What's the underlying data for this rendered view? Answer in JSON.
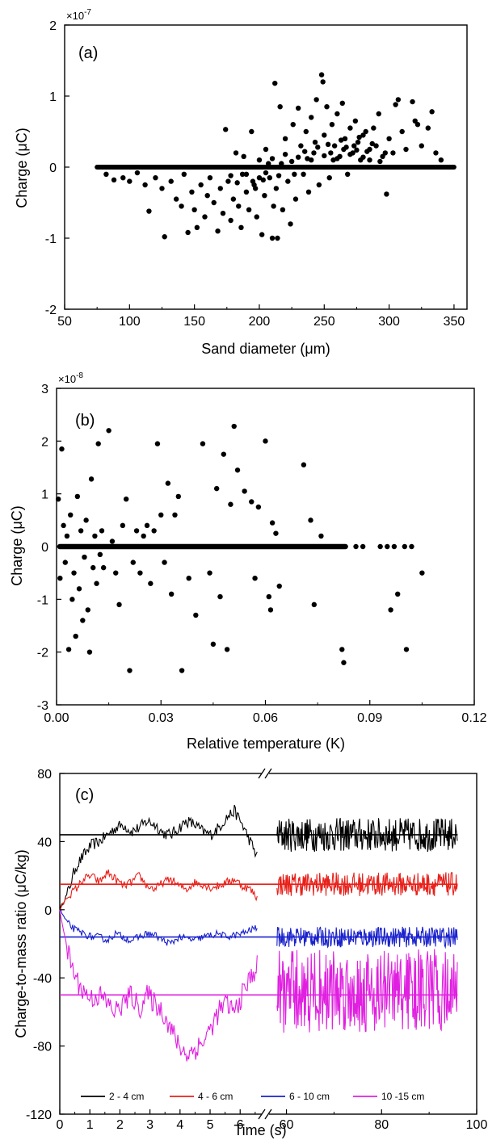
{
  "chart_data": [
    {
      "type": "scatter",
      "panel_label": "(a)",
      "xlabel": "Sand diameter (μm)",
      "ylabel": "Charge (μC)",
      "y_multiplier": "×10-7",
      "xlim": [
        50,
        360
      ],
      "ylim": [
        -2,
        2
      ],
      "xticks": [
        "50",
        "100",
        "150",
        "200",
        "250",
        "300",
        "350"
      ],
      "yticks": [
        "-2",
        "-1",
        "0",
        "1",
        "2"
      ],
      "zero_band": [
        75,
        350
      ],
      "points": [
        [
          82,
          -0.1
        ],
        [
          88,
          -0.18
        ],
        [
          95,
          -0.15
        ],
        [
          100,
          -0.2
        ],
        [
          106,
          -0.08
        ],
        [
          112,
          -0.25
        ],
        [
          115,
          -0.62
        ],
        [
          120,
          -0.15
        ],
        [
          125,
          -0.3
        ],
        [
          127,
          -0.98
        ],
        [
          132,
          -0.2
        ],
        [
          136,
          -0.45
        ],
        [
          140,
          -0.55
        ],
        [
          142,
          -0.1
        ],
        [
          145,
          -0.92
        ],
        [
          148,
          -0.35
        ],
        [
          150,
          -0.6
        ],
        [
          152,
          -0.85
        ],
        [
          155,
          -0.25
        ],
        [
          158,
          -0.7
        ],
        [
          160,
          -0.4
        ],
        [
          162,
          -0.15
        ],
        [
          165,
          -0.5
        ],
        [
          168,
          -0.9
        ],
        [
          170,
          -0.3
        ],
        [
          172,
          -0.65
        ],
        [
          174,
          0.53
        ],
        [
          176,
          -0.2
        ],
        [
          178,
          -0.75
        ],
        [
          180,
          -0.45
        ],
        [
          182,
          0.2
        ],
        [
          184,
          -0.55
        ],
        [
          186,
          -0.85
        ],
        [
          188,
          0.15
        ],
        [
          190,
          -0.35
        ],
        [
          192,
          -0.6
        ],
        [
          194,
          0.5
        ],
        [
          196,
          -0.25
        ],
        [
          198,
          -0.7
        ],
        [
          200,
          0.1
        ],
        [
          202,
          -0.95
        ],
        [
          204,
          -0.4
        ],
        [
          205,
          0.25
        ],
        [
          208,
          -0.15
        ],
        [
          210,
          -1.0
        ],
        [
          211,
          -0.55
        ],
        [
          212,
          1.18
        ],
        [
          213,
          -0.3
        ],
        [
          214,
          -1.0
        ],
        [
          216,
          0.85
        ],
        [
          218,
          -0.6
        ],
        [
          220,
          0.4
        ],
        [
          222,
          -0.2
        ],
        [
          224,
          -0.8
        ],
        [
          226,
          0.6
        ],
        [
          228,
          -0.45
        ],
        [
          230,
          0.83
        ],
        [
          232,
          0.3
        ],
        [
          234,
          -0.1
        ],
        [
          236,
          0.5
        ],
        [
          238,
          -0.35
        ],
        [
          240,
          0.7
        ],
        [
          242,
          0.2
        ],
        [
          244,
          0.95
        ],
        [
          246,
          -0.25
        ],
        [
          248,
          1.3
        ],
        [
          249,
          1.2
        ],
        [
          250,
          0.45
        ],
        [
          252,
          0.85
        ],
        [
          254,
          -0.15
        ],
        [
          256,
          0.6
        ],
        [
          258,
          0.3
        ],
        [
          260,
          0.75
        ],
        [
          262,
          0.15
        ],
        [
          264,
          0.9
        ],
        [
          266,
          0.4
        ],
        [
          268,
          -0.1
        ],
        [
          270,
          0.55
        ],
        [
          272,
          0.2
        ],
        [
          274,
          0.65
        ],
        [
          276,
          0.35
        ],
        [
          278,
          0.1
        ],
        [
          280,
          0.45
        ],
        [
          282,
          0.5
        ],
        [
          285,
          0.25
        ],
        [
          288,
          0.55
        ],
        [
          290,
          0.3
        ],
        [
          292,
          0.75
        ],
        [
          295,
          0.15
        ],
        [
          298,
          -0.38
        ],
        [
          300,
          0.4
        ],
        [
          303,
          0.2
        ],
        [
          305,
          0.88
        ],
        [
          307,
          0.95
        ],
        [
          310,
          0.5
        ],
        [
          313,
          0.25
        ],
        [
          318,
          0.92
        ],
        [
          320,
          0.65
        ],
        [
          322,
          0.6
        ],
        [
          325,
          0.3
        ],
        [
          330,
          0.55
        ],
        [
          333,
          0.78
        ],
        [
          336,
          0.2
        ],
        [
          340,
          0.1
        ],
        [
          190,
          -0.1
        ],
        [
          195,
          -0.2
        ],
        [
          200,
          -0.15
        ],
        [
          205,
          -0.08
        ],
        [
          210,
          0.12
        ],
        [
          215,
          -0.12
        ],
        [
          220,
          0.18
        ],
        [
          225,
          0.08
        ],
        [
          230,
          0.14
        ],
        [
          235,
          0.22
        ],
        [
          240,
          0.1
        ],
        [
          245,
          0.28
        ],
        [
          250,
          0.16
        ],
        [
          255,
          0.2
        ],
        [
          260,
          0.12
        ],
        [
          265,
          0.25
        ],
        [
          270,
          0.18
        ],
        [
          275,
          0.24
        ],
        [
          280,
          0.14
        ],
        [
          285,
          0.1
        ],
        [
          178,
          -0.12
        ],
        [
          183,
          -0.22
        ],
        [
          187,
          -0.1
        ],
        [
          197,
          -0.3
        ],
        [
          203,
          -0.18
        ],
        [
          207,
          0.05
        ],
        [
          217,
          0.05
        ],
        [
          227,
          -0.1
        ],
        [
          237,
          0.12
        ],
        [
          243,
          0.35
        ],
        [
          253,
          0.32
        ],
        [
          257,
          0.1
        ],
        [
          263,
          0.38
        ],
        [
          267,
          0.28
        ],
        [
          273,
          0.3
        ],
        [
          277,
          0.42
        ],
        [
          283,
          0.22
        ],
        [
          287,
          0.33
        ],
        [
          293,
          0.08
        ],
        [
          297,
          0.2
        ]
      ]
    },
    {
      "type": "scatter",
      "panel_label": "(b)",
      "xlabel": "Relative temperature (K)",
      "ylabel": "Charge (μC)",
      "y_multiplier": "×10-8",
      "xlim": [
        0,
        0.12
      ],
      "ylim": [
        -3,
        3
      ],
      "xticks": [
        "0.00",
        "0.03",
        "0.06",
        "0.09",
        "0.12"
      ],
      "yticks": [
        "-3",
        "-2",
        "-1",
        "0",
        "1",
        "2",
        "3"
      ],
      "zero_band": [
        0,
        0.083
      ],
      "points": [
        [
          0.0005,
          0.9
        ],
        [
          0.001,
          -0.6
        ],
        [
          0.0015,
          1.85
        ],
        [
          0.002,
          0.4
        ],
        [
          0.0025,
          -0.3
        ],
        [
          0.003,
          0.2
        ],
        [
          0.0035,
          -1.95
        ],
        [
          0.004,
          0.6
        ],
        [
          0.0045,
          -1.0
        ],
        [
          0.005,
          -0.5
        ],
        [
          0.0055,
          -1.7
        ],
        [
          0.006,
          0.95
        ],
        [
          0.0065,
          -0.8
        ],
        [
          0.007,
          0.3
        ],
        [
          0.0075,
          -1.4
        ],
        [
          0.008,
          -0.2
        ],
        [
          0.0085,
          0.5
        ],
        [
          0.009,
          -1.2
        ],
        [
          0.0095,
          -2.0
        ],
        [
          0.01,
          1.28
        ],
        [
          0.0105,
          -0.4
        ],
        [
          0.011,
          0.2
        ],
        [
          0.0115,
          -0.7
        ],
        [
          0.012,
          1.95
        ],
        [
          0.0125,
          -0.15
        ],
        [
          0.013,
          0.3
        ],
        [
          0.0135,
          -0.4
        ],
        [
          0.015,
          2.2
        ],
        [
          0.016,
          0.1
        ],
        [
          0.017,
          -0.5
        ],
        [
          0.018,
          -1.1
        ],
        [
          0.019,
          0.4
        ],
        [
          0.02,
          0.9
        ],
        [
          0.021,
          -2.35
        ],
        [
          0.022,
          -0.3
        ],
        [
          0.023,
          0.3
        ],
        [
          0.024,
          -0.5
        ],
        [
          0.025,
          0.2
        ],
        [
          0.026,
          0.4
        ],
        [
          0.027,
          -0.7
        ],
        [
          0.028,
          0.3
        ],
        [
          0.029,
          1.95
        ],
        [
          0.03,
          0.6
        ],
        [
          0.031,
          -0.3
        ],
        [
          0.032,
          1.2
        ],
        [
          0.033,
          -0.9
        ],
        [
          0.034,
          0.6
        ],
        [
          0.035,
          0.95
        ],
        [
          0.036,
          -2.35
        ],
        [
          0.038,
          -0.6
        ],
        [
          0.04,
          -1.3
        ],
        [
          0.042,
          1.95
        ],
        [
          0.044,
          -0.5
        ],
        [
          0.045,
          -1.85
        ],
        [
          0.046,
          1.1
        ],
        [
          0.047,
          -0.95
        ],
        [
          0.048,
          1.75
        ],
        [
          0.049,
          -1.95
        ],
        [
          0.05,
          0.8
        ],
        [
          0.051,
          2.28
        ],
        [
          0.052,
          1.45
        ],
        [
          0.054,
          1.05
        ],
        [
          0.056,
          0.85
        ],
        [
          0.057,
          -0.6
        ],
        [
          0.058,
          0.75
        ],
        [
          0.06,
          2.0
        ],
        [
          0.061,
          -0.95
        ],
        [
          0.0615,
          -1.2
        ],
        [
          0.062,
          0.45
        ],
        [
          0.063,
          0.25
        ],
        [
          0.064,
          -0.75
        ],
        [
          0.071,
          1.55
        ],
        [
          0.073,
          0.5
        ],
        [
          0.074,
          -1.1
        ],
        [
          0.076,
          0.2
        ],
        [
          0.082,
          -1.95
        ],
        [
          0.0825,
          -2.2
        ],
        [
          0.096,
          -1.2
        ],
        [
          0.098,
          -0.9
        ],
        [
          0.1005,
          -1.95
        ],
        [
          0.105,
          -0.5
        ]
      ],
      "tail_zero_points": [
        0.086,
        0.088,
        0.093,
        0.095,
        0.097,
        0.1,
        0.102
      ]
    },
    {
      "type": "line",
      "panel_label": "(c)",
      "xlabel": "Time (s)",
      "ylabel": "Charge-to-mass ratio (μC/kg)",
      "ylim": [
        -120,
        80
      ],
      "yticks": [
        "-120",
        "-80",
        "-40",
        "0",
        "40",
        "80"
      ],
      "xticks_left": [
        "0",
        "1",
        "2",
        "3",
        "4",
        "5",
        "6"
      ],
      "xticks_right": [
        "60",
        "80",
        "100"
      ],
      "x_break": "//",
      "series": [
        {
          "name": "2 - 4 cm",
          "color": "#000000",
          "mean": 44,
          "early": [
            0,
            10,
            25,
            32,
            38,
            40,
            44,
            48,
            50,
            46,
            48,
            52,
            50,
            45,
            44,
            48,
            52,
            50,
            46,
            44,
            48,
            54,
            58,
            50,
            40,
            30
          ],
          "amp": 20
        },
        {
          "name": "4 - 6 cm",
          "color": "#e8201a",
          "mean": 15,
          "early": [
            0,
            8,
            12,
            18,
            20,
            16,
            22,
            18,
            14,
            16,
            20,
            14,
            12,
            16,
            18,
            14,
            12,
            16,
            15,
            13,
            14,
            16,
            18,
            14,
            12,
            6
          ],
          "amp": 14
        },
        {
          "name": "6 - 10 cm",
          "color": "#1a22cc",
          "mean": -16,
          "early": [
            0,
            -8,
            -12,
            -14,
            -16,
            -16,
            -18,
            -14,
            -16,
            -18,
            -16,
            -14,
            -15,
            -18,
            -20,
            -16,
            -17,
            -18,
            -16,
            -15,
            -14,
            -16,
            -15,
            -14,
            -12,
            -10
          ],
          "amp": 12
        },
        {
          "name": "10 -15 cm",
          "color": "#e020e0",
          "mean": -50,
          "early": [
            0,
            -25,
            -40,
            -48,
            -52,
            -50,
            -55,
            -60,
            -55,
            -50,
            -58,
            -50,
            -55,
            -60,
            -70,
            -80,
            -85,
            -82,
            -78,
            -70,
            -60,
            -55,
            -60,
            -50,
            -40,
            -32
          ],
          "amp": 38
        }
      ]
    }
  ]
}
